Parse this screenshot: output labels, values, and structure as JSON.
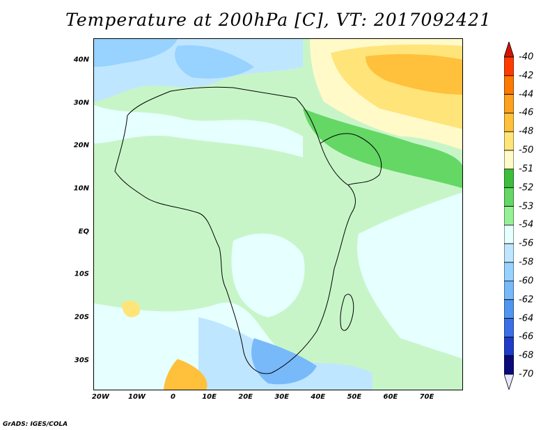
{
  "title": "Temperature at 200hPa [C], VT: 2017092421",
  "footer": "GrADS: IGES/COLA",
  "map": {
    "lon_range": [
      -22,
      80
    ],
    "lat_range": [
      -37,
      45
    ],
    "lat_labels": [
      "40N",
      "30N",
      "20N",
      "10N",
      "EQ",
      "10S",
      "20S",
      "30S"
    ],
    "lat_values": [
      40,
      30,
      20,
      10,
      0,
      -10,
      -20,
      -30
    ],
    "lon_labels": [
      "20W",
      "10W",
      "0",
      "10E",
      "20E",
      "30E",
      "40E",
      "50E",
      "60E",
      "70E"
    ],
    "lon_values": [
      -20,
      -10,
      0,
      10,
      20,
      30,
      40,
      50,
      60,
      70
    ]
  },
  "colorbar": {
    "labels": [
      "-40",
      "-42",
      "-44",
      "-46",
      "-48",
      "-50",
      "-51",
      "-52",
      "-53",
      "-54",
      "-56",
      "-58",
      "-60",
      "-62",
      "-64",
      "-66",
      "-68",
      "-70"
    ],
    "colors": [
      "#d21400",
      "#ff3c00",
      "#ff7800",
      "#ffa01e",
      "#ffc03c",
      "#ffe47a",
      "#fffac8",
      "#3cbe3c",
      "#64d764",
      "#96f096",
      "#e6ffff",
      "#bfe6ff",
      "#98d2ff",
      "#78b9fa",
      "#5096f0",
      "#3c6ee6",
      "#1e3cc8",
      "#0a0a78"
    ],
    "under_color": "#e6e6ff"
  }
}
